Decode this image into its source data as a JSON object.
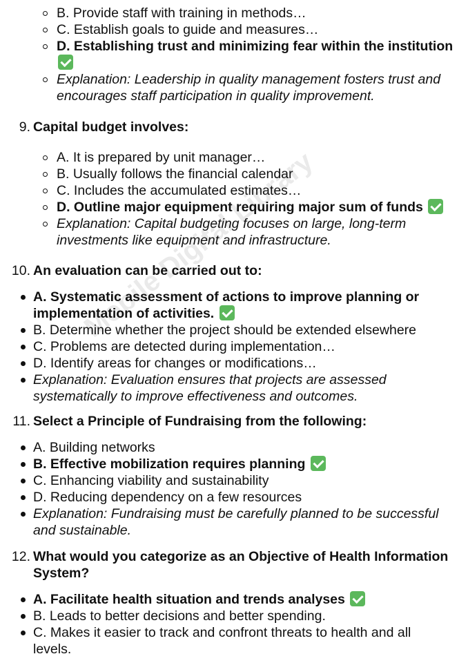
{
  "watermark": "Mobile Digital Library",
  "check_icon": "white-check-mark-icon",
  "check_color": "#5cb85c",
  "q8": {
    "options": {
      "b": "B. Provide staff with training in methods…",
      "c": "C. Establish goals to guide and measures…",
      "d_line1": "D. Establishing trust and minimizing fear within the institution"
    },
    "explanation": {
      "line1": "Explanation: Leadership in quality management fosters trust and",
      "line2": "encourages staff participation in quality improvement."
    }
  },
  "q9": {
    "number": "9.",
    "question": "Capital budget involves:",
    "options": {
      "a": "A. It is prepared by unit manager…",
      "b": "B. Usually follows the financial calendar",
      "c": "C. Includes the accumulated estimates…",
      "d": "D. Outline major equipment requiring major sum of funds"
    },
    "explanation": {
      "line1": "Explanation: Capital budgeting focuses on large, long-term",
      "line2": "investments like equipment and infrastructure."
    }
  },
  "q10": {
    "number": "10.",
    "question": "An evaluation can be carried out to:",
    "options": {
      "a_line1": "A. Systematic assessment of actions to improve planning or",
      "a_line2": "implementation of activities.",
      "b": "B. Determine whether the project should be extended elsewhere",
      "c": "C. Problems are detected during implementation…",
      "d": "D. Identify areas for changes or modifications…"
    },
    "explanation": {
      "line1": "Explanation: Evaluation ensures that projects are assessed",
      "line2": "systematically to improve effectiveness and outcomes."
    }
  },
  "q11": {
    "number": "11.",
    "question": "Select a Principle of Fundraising from the following:",
    "options": {
      "a": "A. Building networks",
      "b": "B. Effective mobilization requires planning",
      "c": "C. Enhancing viability and sustainability",
      "d": "D. Reducing dependency on a few resources"
    },
    "explanation": {
      "line1": "Explanation: Fundraising must be carefully planned to be successful",
      "line2": "and sustainable."
    }
  },
  "q12": {
    "number": "12.",
    "question_line1": "What would you categorize as an Objective of Health Information",
    "question_line2": "System?",
    "options": {
      "a": "A. Facilitate health situation and trends analyses",
      "b": "B. Leads to better decisions and better spending.",
      "c_line1": "C. Makes it easier to track and confront threats to health and all",
      "c_line2": "levels."
    }
  }
}
